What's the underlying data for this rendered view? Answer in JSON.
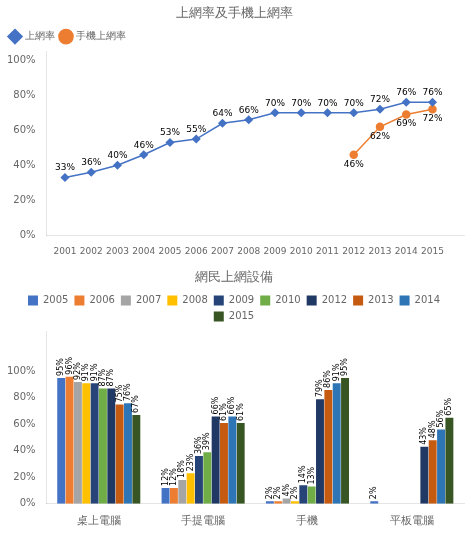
{
  "chart_data": [
    {
      "type": "line",
      "title": "上網率及手機上網率",
      "x": [
        2001,
        2002,
        2003,
        2004,
        2005,
        2006,
        2007,
        2008,
        2009,
        2010,
        2011,
        2012,
        2013,
        2014,
        2015
      ],
      "series": [
        {
          "name": "上網率",
          "color": "#4472C4",
          "marker": "diamond",
          "values": [
            33,
            36,
            40,
            46,
            53,
            55,
            64,
            66,
            70,
            70,
            70,
            70,
            72,
            76,
            76
          ],
          "value_labels": [
            "33%",
            "36%",
            "40%",
            "46%",
            "53%",
            "55%",
            "64%",
            "66%",
            "70%",
            "70%",
            "70%",
            "70%",
            "72%",
            "76%",
            "76%"
          ]
        },
        {
          "name": "手機上網率",
          "color": "#ED7D31",
          "marker": "circle",
          "values": [
            null,
            null,
            null,
            null,
            null,
            null,
            null,
            null,
            null,
            null,
            null,
            46,
            62,
            69,
            72
          ],
          "value_labels": [
            null,
            null,
            null,
            null,
            null,
            null,
            null,
            null,
            null,
            null,
            null,
            "46%",
            "62%",
            "69%",
            "72%"
          ]
        }
      ],
      "xlim": [
        2000.3,
        2016.2
      ],
      "xticks": [
        2001,
        2002,
        2003,
        2004,
        2005,
        2006,
        2007,
        2008,
        2009,
        2010,
        2011,
        2012,
        2013,
        2014,
        2015
      ],
      "ylim": [
        0,
        105
      ],
      "yticks": [
        {
          "value": 0,
          "label": "0%"
        },
        {
          "value": 20,
          "label": "20%"
        },
        {
          "value": 40,
          "label": "40%"
        },
        {
          "value": 60,
          "label": "60%"
        },
        {
          "value": 80,
          "label": "80%"
        },
        {
          "value": 100,
          "label": "100%"
        }
      ],
      "grid": false,
      "legend": "upper left",
      "data_labels": true
    },
    {
      "type": "bar",
      "title": "網民上網設備",
      "categories": [
        "桌上電腦",
        "手提電腦",
        "手機",
        "平板電腦"
      ],
      "series": [
        {
          "name": "2005",
          "color": "#4472C4",
          "values": [
            95,
            12,
            2,
            2
          ],
          "value_labels": [
            "95%",
            "12%",
            "2%",
            "2%"
          ]
        },
        {
          "name": "2006",
          "color": "#ED7D31",
          "values": [
            96,
            12,
            2,
            null
          ],
          "value_labels": [
            "96%",
            "12%",
            "2%",
            null
          ]
        },
        {
          "name": "2007",
          "color": "#A5A5A5",
          "values": [
            92,
            18,
            4,
            null
          ],
          "value_labels": [
            "92%",
            "18%",
            "4%",
            null
          ]
        },
        {
          "name": "2008",
          "color": "#FFC000",
          "values": [
            91,
            23,
            2,
            null
          ],
          "value_labels": [
            "91%",
            "23%",
            "2%",
            null
          ]
        },
        {
          "name": "2009",
          "color": "#264478",
          "values": [
            91,
            36,
            14,
            null
          ],
          "value_labels": [
            "91%",
            "36%",
            "14%",
            null
          ]
        },
        {
          "name": "2010",
          "color": "#70AD47",
          "values": [
            87,
            39,
            13,
            null
          ],
          "value_labels": [
            "87%",
            "39%",
            "13%",
            null
          ]
        },
        {
          "name": "2012",
          "color": "#203864",
          "values": [
            87,
            66,
            79,
            43
          ],
          "value_labels": [
            "87%",
            "66%",
            "79%",
            "43%"
          ]
        },
        {
          "name": "2013",
          "color": "#C55A11",
          "values": [
            75,
            61,
            86,
            48
          ],
          "value_labels": [
            "75%",
            "61%",
            "86%",
            "48%"
          ]
        },
        {
          "name": "2014",
          "color": "#2E75B6",
          "values": [
            76,
            66,
            91,
            56
          ],
          "value_labels": [
            "76%",
            "66%",
            "91%",
            "56%"
          ]
        },
        {
          "name": "2015",
          "color": "#375623",
          "values": [
            67,
            61,
            95,
            65
          ],
          "value_labels": [
            "67%",
            "61%",
            "95%",
            "65%"
          ]
        }
      ],
      "ylim": [
        0,
        130
      ],
      "yticks": [
        {
          "value": 0,
          "label": "0%"
        },
        {
          "value": 20,
          "label": "20%"
        },
        {
          "value": 40,
          "label": "40%"
        },
        {
          "value": 60,
          "label": "60%"
        },
        {
          "value": 80,
          "label": "80%"
        },
        {
          "value": 100,
          "label": "100%"
        }
      ],
      "grid": false,
      "legend": "top",
      "data_labels": true
    }
  ]
}
